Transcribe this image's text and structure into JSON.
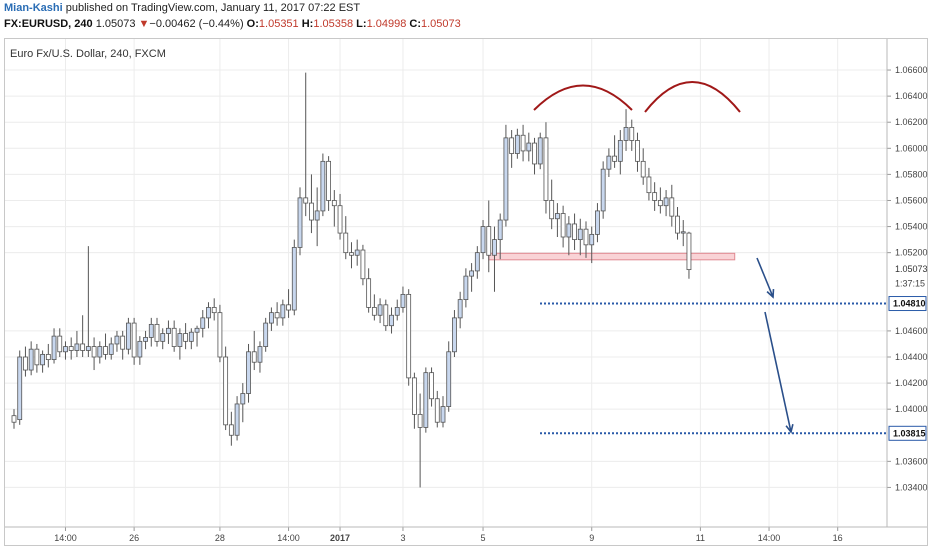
{
  "header": {
    "author": "Mian-Kashi",
    "published": "published on TradingView.com, January 11, 2017 07:22 EST",
    "symbol": "FX:EURUSD, 240",
    "last": "1.05073",
    "change_arrow": "▼",
    "change": "−0.00462 (−0.44%)",
    "o_label": "O:",
    "o": "1.05351",
    "h_label": "H:",
    "h": "1.05358",
    "l_label": "L:",
    "l": "1.04998",
    "c_label": "C:",
    "c": "1.05073"
  },
  "legend": "Euro Fx/U.S. Dollar, 240, FXCM",
  "colors": {
    "up_fill": "#c8d7ee",
    "down_fill": "#ffffff",
    "candle_border": "#555555",
    "dotted_line": "#2a5aa8",
    "arc": "#a01818",
    "zone_fill": "#f9d3d6",
    "zone_border": "#e08a92",
    "arrow": "#2a4f8a",
    "grid": "#ececec"
  },
  "chart_data": {
    "type": "candlestick",
    "ylim": [
      1.0325,
      1.067
    ],
    "y_ticks": [
      "1.06600",
      "1.06400",
      "1.06200",
      "1.06000",
      "1.05800",
      "1.05600",
      "1.05400",
      "1.05200",
      "1.04600",
      "1.04400",
      "1.04200",
      "1.04000",
      "1.03600",
      "1.03400"
    ],
    "x_ticks": [
      {
        "label": "14:00",
        "i": 9
      },
      {
        "label": "26",
        "i": 21
      },
      {
        "label": "28",
        "i": 36
      },
      {
        "label": "14:00",
        "i": 48
      },
      {
        "label": "2017",
        "i": 57,
        "bold": true
      },
      {
        "label": "3",
        "i": 68
      },
      {
        "label": "5",
        "i": 82
      },
      {
        "label": "9",
        "i": 101
      },
      {
        "label": "11",
        "i": 120
      },
      {
        "label": "14:00",
        "i": 132
      },
      {
        "label": "16",
        "i": 144
      }
    ],
    "price_labels": [
      {
        "value": 1.05073,
        "text": "1.05073",
        "style": "current"
      },
      {
        "value": 1.0508,
        "text": "1:37:15",
        "style": "timer"
      },
      {
        "value": 1.0481,
        "text": "1.04810",
        "style": "level"
      },
      {
        "value": 1.03815,
        "text": "1.03815",
        "style": "level"
      }
    ],
    "levels": [
      1.0481,
      1.03815
    ],
    "zone": {
      "low": 1.05145,
      "high": 1.05195,
      "from_i": 83,
      "to_i": 126
    },
    "candles": [
      [
        1.0395,
        1.04,
        1.0385,
        1.039
      ],
      [
        1.0392,
        1.0445,
        1.0388,
        1.044
      ],
      [
        1.044,
        1.0448,
        1.0425,
        1.043
      ],
      [
        1.043,
        1.0452,
        1.0426,
        1.0446
      ],
      [
        1.0446,
        1.045,
        1.0428,
        1.0434
      ],
      [
        1.0434,
        1.0445,
        1.0428,
        1.0442
      ],
      [
        1.0442,
        1.045,
        1.0432,
        1.0438
      ],
      [
        1.0438,
        1.0462,
        1.0435,
        1.0456
      ],
      [
        1.0456,
        1.0462,
        1.044,
        1.0444
      ],
      [
        1.0444,
        1.0452,
        1.0438,
        1.0448
      ],
      [
        1.0448,
        1.0455,
        1.0438,
        1.0445
      ],
      [
        1.0445,
        1.046,
        1.044,
        1.045
      ],
      [
        1.045,
        1.0472,
        1.044,
        1.0445
      ],
      [
        1.0445,
        1.0525,
        1.044,
        1.0448
      ],
      [
        1.0448,
        1.0455,
        1.043,
        1.044
      ],
      [
        1.044,
        1.0452,
        1.0435,
        1.0448
      ],
      [
        1.0448,
        1.0458,
        1.0438,
        1.0442
      ],
      [
        1.0442,
        1.0455,
        1.0438,
        1.045
      ],
      [
        1.045,
        1.046,
        1.0444,
        1.0456
      ],
      [
        1.0456,
        1.046,
        1.0438,
        1.0446
      ],
      [
        1.0446,
        1.047,
        1.0442,
        1.0466
      ],
      [
        1.0466,
        1.047,
        1.0434,
        1.044
      ],
      [
        1.044,
        1.0456,
        1.0434,
        1.0452
      ],
      [
        1.0452,
        1.046,
        1.0446,
        1.0455
      ],
      [
        1.0455,
        1.047,
        1.0448,
        1.0465
      ],
      [
        1.0465,
        1.047,
        1.0448,
        1.0452
      ],
      [
        1.0452,
        1.0462,
        1.0446,
        1.0458
      ],
      [
        1.0458,
        1.0468,
        1.045,
        1.0462
      ],
      [
        1.0462,
        1.0468,
        1.0444,
        1.0448
      ],
      [
        1.0448,
        1.0462,
        1.0438,
        1.0458
      ],
      [
        1.0458,
        1.0466,
        1.0446,
        1.0452
      ],
      [
        1.0452,
        1.0462,
        1.0446,
        1.0459
      ],
      [
        1.0459,
        1.0464,
        1.0448,
        1.0462
      ],
      [
        1.0462,
        1.0476,
        1.0455,
        1.047
      ],
      [
        1.047,
        1.0482,
        1.0462,
        1.0478
      ],
      [
        1.0478,
        1.0485,
        1.0468,
        1.0474
      ],
      [
        1.0474,
        1.048,
        1.0436,
        1.044
      ],
      [
        1.044,
        1.0448,
        1.0384,
        1.0388
      ],
      [
        1.0388,
        1.0398,
        1.0372,
        1.038
      ],
      [
        1.038,
        1.041,
        1.0376,
        1.0404
      ],
      [
        1.0404,
        1.042,
        1.039,
        1.0412
      ],
      [
        1.0412,
        1.045,
        1.0405,
        1.0444
      ],
      [
        1.0444,
        1.046,
        1.043,
        1.0436
      ],
      [
        1.0436,
        1.0452,
        1.0428,
        1.0448
      ],
      [
        1.0448,
        1.047,
        1.0444,
        1.0466
      ],
      [
        1.0466,
        1.0478,
        1.046,
        1.0474
      ],
      [
        1.0474,
        1.0482,
        1.0464,
        1.047
      ],
      [
        1.047,
        1.0484,
        1.0464,
        1.048
      ],
      [
        1.048,
        1.0492,
        1.047,
        1.0476
      ],
      [
        1.0476,
        1.053,
        1.0472,
        1.0524
      ],
      [
        1.0524,
        1.057,
        1.0518,
        1.0562
      ],
      [
        1.0562,
        1.0658,
        1.0548,
        1.0558
      ],
      [
        1.0558,
        1.058,
        1.0535,
        1.0545
      ],
      [
        1.0545,
        1.057,
        1.0525,
        1.0552
      ],
      [
        1.0552,
        1.0596,
        1.0548,
        1.059
      ],
      [
        1.059,
        1.0594,
        1.0552,
        1.056
      ],
      [
        1.056,
        1.0568,
        1.054,
        1.0556
      ],
      [
        1.0556,
        1.0565,
        1.053,
        1.0535
      ],
      [
        1.0535,
        1.0548,
        1.0515,
        1.052
      ],
      [
        1.052,
        1.0528,
        1.0508,
        1.0518
      ],
      [
        1.0518,
        1.053,
        1.051,
        1.0522
      ],
      [
        1.0522,
        1.0526,
        1.0495,
        1.05
      ],
      [
        1.05,
        1.0508,
        1.0474,
        1.0478
      ],
      [
        1.0478,
        1.0488,
        1.0468,
        1.0472
      ],
      [
        1.0472,
        1.0485,
        1.0466,
        1.048
      ],
      [
        1.048,
        1.0484,
        1.046,
        1.0464
      ],
      [
        1.0464,
        1.0478,
        1.0458,
        1.0472
      ],
      [
        1.0472,
        1.0484,
        1.0468,
        1.0478
      ],
      [
        1.0478,
        1.0494,
        1.0474,
        1.0488
      ],
      [
        1.0488,
        1.0492,
        1.0418,
        1.0424
      ],
      [
        1.0424,
        1.0428,
        1.0385,
        1.0396
      ],
      [
        1.0396,
        1.0412,
        1.034,
        1.0386
      ],
      [
        1.0386,
        1.0432,
        1.0382,
        1.0428
      ],
      [
        1.0428,
        1.0432,
        1.0402,
        1.0408
      ],
      [
        1.0408,
        1.0414,
        1.0386,
        1.039
      ],
      [
        1.039,
        1.041,
        1.0386,
        1.0402
      ],
      [
        1.0402,
        1.0452,
        1.0398,
        1.0444
      ],
      [
        1.0444,
        1.0476,
        1.044,
        1.047
      ],
      [
        1.047,
        1.049,
        1.0462,
        1.0484
      ],
      [
        1.0484,
        1.0508,
        1.0478,
        1.0502
      ],
      [
        1.0502,
        1.0512,
        1.049,
        1.0506
      ],
      [
        1.0506,
        1.0525,
        1.05,
        1.052
      ],
      [
        1.052,
        1.0545,
        1.0515,
        1.054
      ],
      [
        1.054,
        1.056,
        1.0505,
        1.0518
      ],
      [
        1.0518,
        1.054,
        1.049,
        1.053
      ],
      [
        1.053,
        1.055,
        1.0515,
        1.0545
      ],
      [
        1.0545,
        1.0618,
        1.054,
        1.0608
      ],
      [
        1.0608,
        1.0614,
        1.0585,
        1.0596
      ],
      [
        1.0596,
        1.0615,
        1.0592,
        1.061
      ],
      [
        1.061,
        1.0618,
        1.059,
        1.0598
      ],
      [
        1.0598,
        1.0612,
        1.059,
        1.0604
      ],
      [
        1.0604,
        1.0608,
        1.058,
        1.0588
      ],
      [
        1.0588,
        1.0612,
        1.0584,
        1.0608
      ],
      [
        1.0608,
        1.062,
        1.055,
        1.056
      ],
      [
        1.056,
        1.0576,
        1.0538,
        1.0546
      ],
      [
        1.0546,
        1.0558,
        1.0532,
        1.055
      ],
      [
        1.055,
        1.0556,
        1.0524,
        1.0532
      ],
      [
        1.0532,
        1.0548,
        1.0518,
        1.0542
      ],
      [
        1.0542,
        1.055,
        1.0522,
        1.053
      ],
      [
        1.053,
        1.0546,
        1.0518,
        1.0538
      ],
      [
        1.0538,
        1.0544,
        1.0516,
        1.0526
      ],
      [
        1.0526,
        1.054,
        1.0512,
        1.0534
      ],
      [
        1.0534,
        1.0558,
        1.0528,
        1.0552
      ],
      [
        1.0552,
        1.059,
        1.0546,
        1.0584
      ],
      [
        1.0584,
        1.06,
        1.0578,
        1.0594
      ],
      [
        1.0594,
        1.061,
        1.0585,
        1.059
      ],
      [
        1.059,
        1.0614,
        1.058,
        1.0606
      ],
      [
        1.0606,
        1.063,
        1.0598,
        1.0616
      ],
      [
        1.0616,
        1.0622,
        1.0598,
        1.0606
      ],
      [
        1.0606,
        1.0612,
        1.0582,
        1.059
      ],
      [
        1.059,
        1.06,
        1.0572,
        1.0578
      ],
      [
        1.0578,
        1.0585,
        1.056,
        1.0566
      ],
      [
        1.0566,
        1.0574,
        1.0552,
        1.056
      ],
      [
        1.056,
        1.057,
        1.055,
        1.0556
      ],
      [
        1.0556,
        1.0568,
        1.0548,
        1.0562
      ],
      [
        1.0562,
        1.0572,
        1.054,
        1.0548
      ],
      [
        1.0548,
        1.0555,
        1.053,
        1.0535
      ],
      [
        1.0535,
        1.0545,
        1.0525,
        1.0536
      ],
      [
        1.0535,
        1.0536,
        1.05,
        1.0507
      ]
    ]
  }
}
